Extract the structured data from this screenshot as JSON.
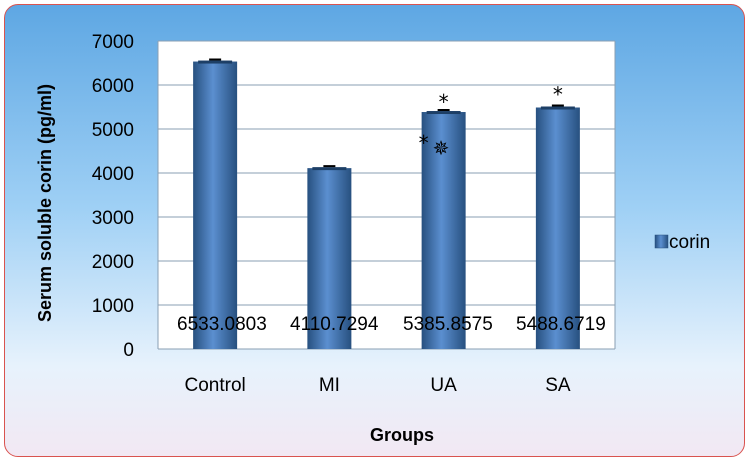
{
  "chart_data": {
    "type": "bar",
    "categories": [
      "Control",
      "MI",
      "UA",
      "SA"
    ],
    "series": [
      {
        "name": "corin",
        "values": [
          6533.0803,
          4110.7294,
          5385.8575,
          5488.6719
        ]
      }
    ],
    "data_labels": [
      "6533.0803",
      "4110.7294",
      "5385.8575",
      "5488.6719"
    ],
    "xlabel": "Groups",
    "ylabel": "Serum soluble corin (pg/ml)",
    "ylim": [
      0,
      7000
    ],
    "yticks": [
      "0",
      "1000",
      "2000",
      "3000",
      "4000",
      "5000",
      "6000",
      "7000"
    ],
    "grid": true,
    "legend_position": "right",
    "annotations": [
      {
        "category": "UA",
        "marks": [
          "*"
        ]
      },
      {
        "category": "UA",
        "marks": [
          "*",
          "✵"
        ]
      },
      {
        "category": "SA",
        "marks": [
          "*"
        ]
      }
    ],
    "colors": {
      "bar": "#4f81bd",
      "bar_dark": "#27507f",
      "grid": "#8a9fb3",
      "frame_border": "#d9534f"
    }
  }
}
